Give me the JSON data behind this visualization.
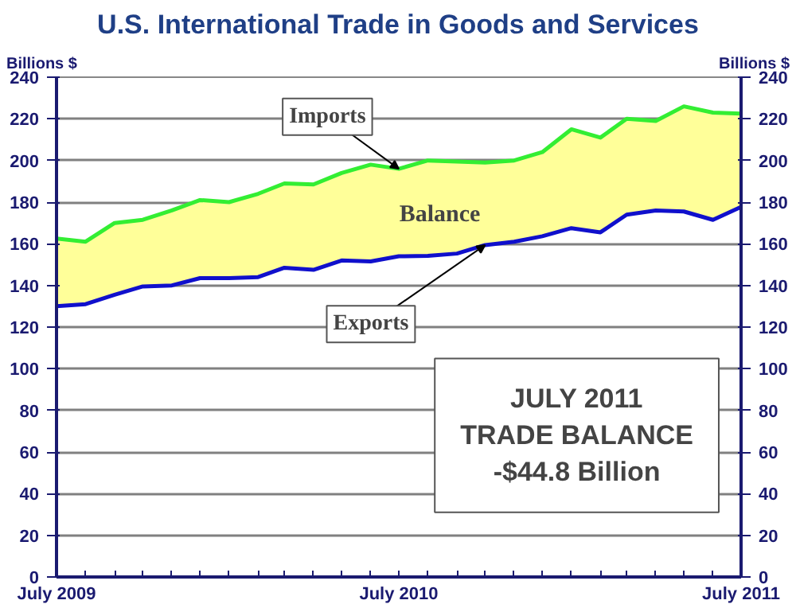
{
  "chart_data": {
    "type": "line",
    "title": "U.S. International Trade in Goods and Services",
    "ylabel": "Billions $",
    "y2label": "Billions $",
    "x": [
      "2009-07",
      "2009-08",
      "2009-09",
      "2009-10",
      "2009-11",
      "2009-12",
      "2010-01",
      "2010-02",
      "2010-03",
      "2010-04",
      "2010-05",
      "2010-06",
      "2010-07",
      "2010-08",
      "2010-09",
      "2010-10",
      "2010-11",
      "2010-12",
      "2011-01",
      "2011-02",
      "2011-03",
      "2011-04",
      "2011-05",
      "2011-06",
      "2011-07"
    ],
    "series": [
      {
        "color": "#33ee33",
        "values": [
          162.5,
          161,
          170,
          171.5,
          176,
          181,
          180,
          184,
          189,
          188.5,
          194,
          198,
          196,
          200,
          199.5,
          199,
          200,
          204,
          215,
          211,
          220,
          219,
          226,
          223,
          222.5
        ],
        "lower": [
          130,
          131,
          135.5,
          139.5,
          140,
          143.5,
          143.5,
          144,
          148.5,
          147.5,
          152,
          151.5,
          154,
          154.2,
          155.3,
          159.4,
          161,
          163.6,
          167.5,
          165.5,
          174,
          176,
          175.5,
          171.5,
          177.7
        ],
        "upper": [
          162.5,
          161,
          170,
          171.5,
          176,
          181,
          180,
          184,
          189,
          188.5,
          194,
          198,
          196,
          200,
          199.5,
          199,
          200,
          204,
          215,
          211,
          220,
          219,
          226,
          223,
          222.5
        ]
      },
      {
        "color": "#1010cc",
        "values": [
          130,
          131,
          135.5,
          139.5,
          140,
          143.5,
          143.5,
          144,
          148.5,
          147.5,
          152,
          151.5,
          154,
          154.2,
          155.3,
          159.4,
          161,
          163.6,
          167.5,
          165.5,
          174,
          176,
          175.5,
          171.5,
          177.7
        ]
      }
    ],
    "xlim": [
      "2009-07",
      "2011-07"
    ],
    "xticks": [
      {
        "value": "2009-07",
        "label": "July 2009"
      },
      {
        "value": "2009-08",
        "label": null
      },
      {
        "value": "2009-09",
        "label": null
      },
      {
        "value": "2009-10",
        "label": null
      },
      {
        "value": "2009-11",
        "label": null
      },
      {
        "value": "2009-12",
        "label": null
      },
      {
        "value": "2010-01",
        "label": null
      },
      {
        "value": "2010-02",
        "label": null
      },
      {
        "value": "2010-03",
        "label": null
      },
      {
        "value": "2010-04",
        "label": null
      },
      {
        "value": "2010-05",
        "label": null
      },
      {
        "value": "2010-06",
        "label": null
      },
      {
        "value": "2010-07",
        "label": "July 2010"
      },
      {
        "value": "2010-08",
        "label": null
      },
      {
        "value": "2010-09",
        "label": null
      },
      {
        "value": "2010-10",
        "label": null
      },
      {
        "value": "2010-11",
        "label": null
      },
      {
        "value": "2010-12",
        "label": null
      },
      {
        "value": "2011-01",
        "label": null
      },
      {
        "value": "2011-02",
        "label": null
      },
      {
        "value": "2011-03",
        "label": null
      },
      {
        "value": "2011-04",
        "label": null
      },
      {
        "value": "2011-05",
        "label": null
      },
      {
        "value": "2011-06",
        "label": null
      },
      {
        "value": "2011-07",
        "label": "July 2011"
      }
    ],
    "ylim": [
      0,
      240
    ],
    "yticks": [
      0,
      20,
      40,
      60,
      80,
      100,
      120,
      140,
      160,
      180,
      200,
      220,
      240
    ],
    "y2lim": [
      0,
      240
    ],
    "y2ticks": [
      0,
      20,
      40,
      60,
      80,
      100,
      120,
      140,
      160,
      180,
      200,
      220,
      240
    ],
    "grid": "y",
    "marker": "none",
    "line_style": "solid",
    "annotations": [
      {
        "text": "Imports",
        "x": "2010-07",
        "y": 196
      },
      {
        "text": "Exports",
        "x": "2010-10",
        "y": 159.4
      },
      "Balance",
      "JULY 2011\nTRADE BALANCE\n-$44.8 Billion"
    ]
  }
}
